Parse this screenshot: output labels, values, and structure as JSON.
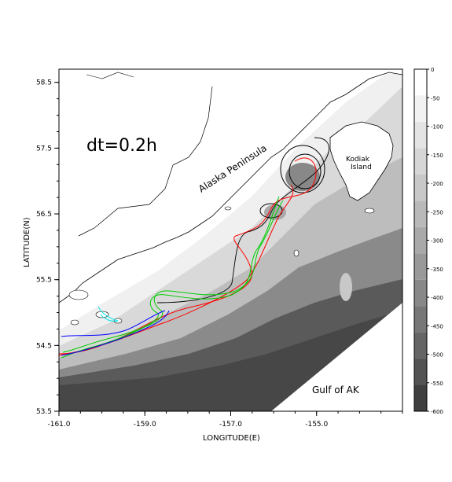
{
  "map": {
    "annotation_dt": "dt=0.2h",
    "label_peninsula": "Alaska Peninsula",
    "label_kodiak_line1": "Kodiak",
    "label_kodiak_line2": "Island",
    "label_gulf": "Gulf of AK",
    "xlabel": "LONGITUDE(E)",
    "ylabel": "LATITUDE(N)",
    "xlim": [
      -161.0,
      -153.0
    ],
    "ylim": [
      53.5,
      58.7
    ],
    "x_ticks": [
      "-161.0",
      "-159.0",
      "-157.0",
      "-155.0"
    ],
    "y_ticks": [
      "58.5",
      "57.5",
      "56.5",
      "55.5",
      "54.5",
      "53.5"
    ],
    "track_colors": [
      "#000000",
      "#ff0000",
      "#00cc00",
      "#0000ff",
      "#00e5e5"
    ]
  },
  "colorbar": {
    "labels": [
      "0",
      "-50",
      "-100",
      "-150",
      "-200",
      "-250",
      "-300",
      "-350",
      "-400",
      "-450",
      "-500",
      "-550",
      "-600"
    ],
    "levels": [
      "#ffffff",
      "#f2f2f2",
      "#e4e4e4",
      "#d6d6d6",
      "#c8c8c8",
      "#b9b9b9",
      "#a9a9a9",
      "#999999",
      "#888888",
      "#777777",
      "#656565",
      "#535353",
      "#3f3f3f"
    ]
  }
}
